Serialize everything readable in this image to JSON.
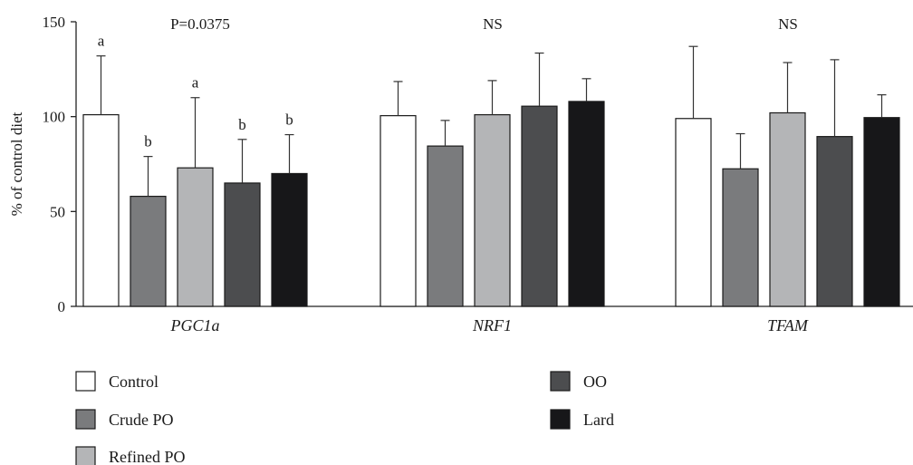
{
  "chart_data": {
    "type": "bar",
    "ylabel": "% of control diet",
    "ylim": [
      0,
      150
    ],
    "yticks": [
      0,
      50,
      100,
      150
    ],
    "categories": [
      "PGC1a",
      "NRF1",
      "TFAM"
    ],
    "group_annotations": [
      "P=0.0375",
      "NS",
      "NS"
    ],
    "legend_position": "bottom",
    "series": [
      {
        "name": "Control",
        "color": "#ffffff",
        "values": [
          101,
          100.5,
          99
        ],
        "errors": [
          31,
          18,
          38
        ],
        "letters": [
          "a",
          "",
          ""
        ]
      },
      {
        "name": "Crude PO",
        "color": "#7a7b7d",
        "values": [
          58,
          84.5,
          72.5
        ],
        "errors": [
          21,
          13.5,
          18.5
        ],
        "letters": [
          "b",
          "",
          ""
        ]
      },
      {
        "name": "Refined PO",
        "color": "#b4b5b7",
        "values": [
          73,
          101,
          102
        ],
        "errors": [
          37,
          18,
          26.5
        ],
        "letters": [
          "a",
          "",
          ""
        ]
      },
      {
        "name": "OO",
        "color": "#4c4d4f",
        "values": [
          65,
          105.5,
          89.5
        ],
        "errors": [
          23,
          28,
          40.5
        ],
        "letters": [
          "b",
          "",
          ""
        ]
      },
      {
        "name": "Lard",
        "color": "#171719",
        "values": [
          70,
          108,
          99.5
        ],
        "errors": [
          20.5,
          12,
          12
        ],
        "letters": [
          "b",
          "",
          ""
        ]
      }
    ]
  }
}
